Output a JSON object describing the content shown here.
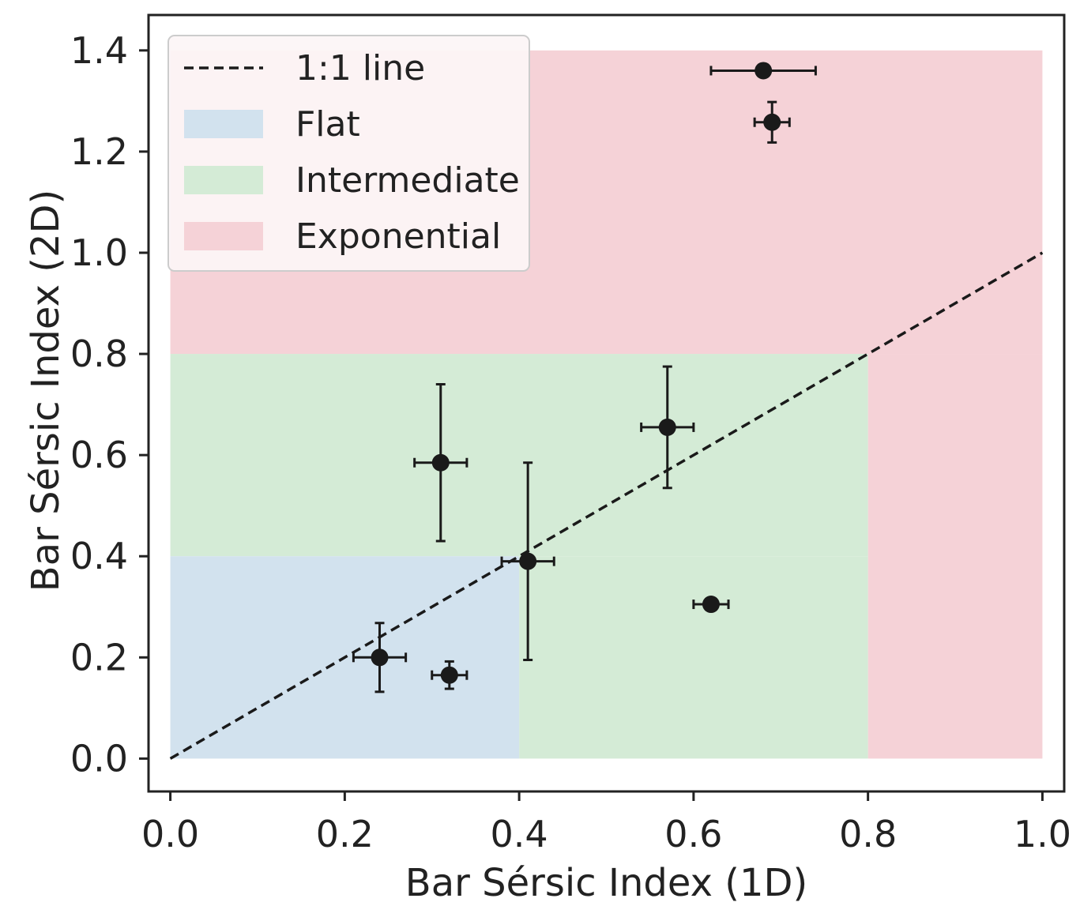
{
  "chart_data": {
    "type": "scatter",
    "title": "",
    "xlabel": "Bar Sérsic Index (1D)",
    "ylabel": "Bar Sérsic Index (2D)",
    "xlim": [
      -0.025,
      1.025
    ],
    "ylim": [
      -0.065,
      1.47
    ],
    "xticks": [
      0.0,
      0.2,
      0.4,
      0.6,
      0.8,
      1.0
    ],
    "xtick_labels": [
      "0.0",
      "0.2",
      "0.4",
      "0.6",
      "0.8",
      "1.0"
    ],
    "yticks": [
      0.0,
      0.2,
      0.4,
      0.6,
      0.8,
      1.0,
      1.2,
      1.4
    ],
    "ytick_labels": [
      "0.0",
      "0.2",
      "0.4",
      "0.6",
      "0.8",
      "1.0",
      "1.2",
      "1.4"
    ],
    "grid": false,
    "legend_position": "top-left",
    "regions": [
      {
        "name": "Exponential",
        "color": "#f5d2d7",
        "x_range": [
          0.0,
          1.0
        ],
        "y_range": [
          0.8,
          1.4
        ]
      },
      {
        "name": "Exponential",
        "color": "#f5d2d7",
        "x_range": [
          0.8,
          1.0
        ],
        "y_range": [
          0.0,
          0.8
        ]
      },
      {
        "name": "Intermediate",
        "color": "#d4ebd6",
        "x_range": [
          0.0,
          0.8
        ],
        "y_range": [
          0.4,
          0.8
        ]
      },
      {
        "name": "Intermediate",
        "color": "#d4ebd6",
        "x_range": [
          0.4,
          0.8
        ],
        "y_range": [
          0.0,
          0.4
        ]
      },
      {
        "name": "Flat",
        "color": "#d2e2ee",
        "x_range": [
          0.0,
          0.4
        ],
        "y_range": [
          0.0,
          0.4
        ]
      }
    ],
    "reference_line": {
      "name": "1:1 line",
      "x": [
        0.0,
        1.0
      ],
      "y": [
        0.0,
        1.0
      ],
      "style": "dashed",
      "color": "#1a1a1a"
    },
    "points": [
      {
        "x": 0.24,
        "y": 0.2,
        "xerr": 0.03,
        "yerr": 0.068
      },
      {
        "x": 0.32,
        "y": 0.165,
        "xerr": 0.02,
        "yerr": 0.027
      },
      {
        "x": 0.31,
        "y": 0.585,
        "xerr": 0.03,
        "yerr": 0.155
      },
      {
        "x": 0.41,
        "y": 0.39,
        "xerr": 0.03,
        "yerr": 0.195
      },
      {
        "x": 0.57,
        "y": 0.655,
        "xerr": 0.03,
        "yerr": 0.12
      },
      {
        "x": 0.62,
        "y": 0.305,
        "xerr": 0.02,
        "yerr": 0.0
      },
      {
        "x": 0.68,
        "y": 1.36,
        "xerr": 0.06,
        "yerr": 0.0
      },
      {
        "x": 0.69,
        "y": 1.258,
        "xerr": 0.02,
        "yerr": 0.04
      }
    ],
    "legend": [
      {
        "label": "1:1 line",
        "kind": "line",
        "color": "#1a1a1a"
      },
      {
        "label": "Flat",
        "kind": "patch",
        "color": "#d2e2ee"
      },
      {
        "label": "Intermediate",
        "kind": "patch",
        "color": "#d4ebd6"
      },
      {
        "label": "Exponential",
        "kind": "patch",
        "color": "#f5d2d7"
      }
    ],
    "colors": {
      "axis": "#222222",
      "marker": "#1a1a1a",
      "legend_bg": "#fcf5f6",
      "legend_border": "#cccccc"
    }
  }
}
